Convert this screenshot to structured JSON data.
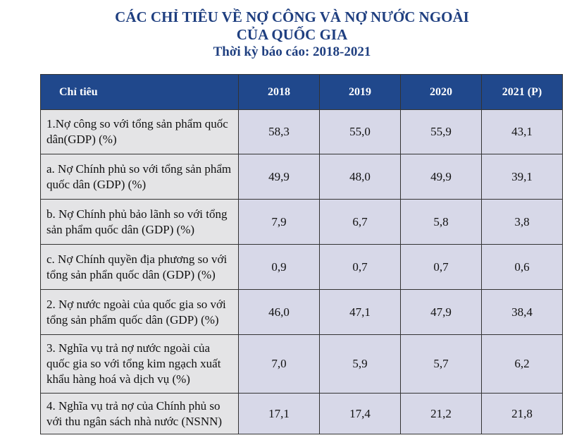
{
  "title": {
    "line1": "CÁC CHỈ TIÊU VỀ NỢ CÔNG VÀ NỢ NƯỚC NGOÀI",
    "line2": "CỦA QUỐC GIA",
    "period": "Thời kỳ báo cáo: 2018-2021"
  },
  "colors": {
    "header_bg": "#20488c",
    "title": "#1f3f80",
    "label_bg": "#e4e4e6",
    "value_bg": "#d7d8e8"
  },
  "table": {
    "headers": [
      "Chỉ tiêu",
      "2018",
      "2019",
      "2020",
      "2021 (P)"
    ],
    "rows": [
      {
        "label": "1.Nợ công so với tổng sản phẩm quốc dân(GDP) (%)",
        "values": [
          "58,3",
          "55,0",
          "55,9",
          "43,1"
        ]
      },
      {
        "label": "a. Nợ Chính phủ so với tổng sản phẩm quốc dân (GDP) (%)",
        "values": [
          "49,9",
          "48,0",
          "49,9",
          "39,1"
        ]
      },
      {
        "label": "b. Nợ Chính phủ bảo lãnh so với tổng sản phẩm quốc dân (GDP) (%)",
        "values": [
          "7,9",
          "6,7",
          "5,8",
          "3,8"
        ]
      },
      {
        "label": "c. Nợ Chính quyền địa phương so với tổng sản phẩn quốc dân (GDP) (%)",
        "values": [
          "0,9",
          "0,7",
          "0,7",
          "0,6"
        ]
      },
      {
        "label": "2. Nợ nước ngoài của quốc gia so với tổng sản phẩm quốc dân (GDP) (%)",
        "values": [
          "46,0",
          "47,1",
          "47,9",
          "38,4"
        ]
      },
      {
        "label": "3. Nghĩa vụ trả nợ nước ngoài của quốc gia so với tổng kim ngạch xuất khẩu hàng hoá và dịch vụ (%)",
        "values": [
          "7,0",
          "5,9",
          "5,7",
          "6,2"
        ]
      },
      {
        "label": "4. Nghĩa vụ trả nợ của Chính phủ so với thu ngân sách nhà nước (NSNN)",
        "values": [
          "17,1",
          "17,4",
          "21,2",
          "21,8"
        ]
      }
    ]
  }
}
